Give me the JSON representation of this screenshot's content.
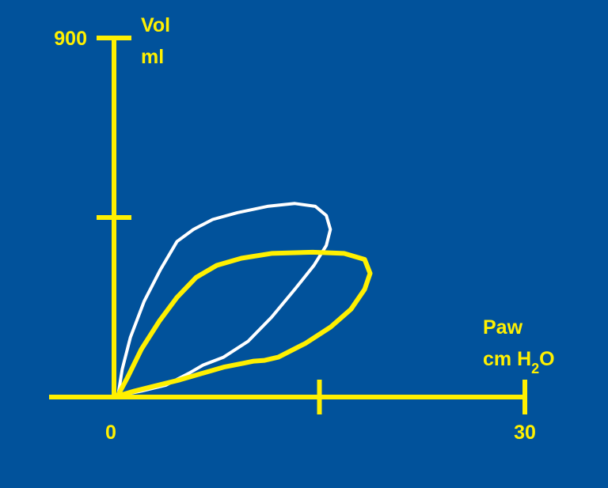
{
  "chart_data": {
    "type": "line",
    "x_axis": {
      "label_line1": "Paw",
      "label_line2_prefix": "cm H",
      "label_line2_sub": "2",
      "label_line2_suffix": "O",
      "range": [
        0,
        30
      ],
      "tick_labels": [
        "0",
        "30"
      ],
      "ticks": [
        0,
        15,
        30
      ]
    },
    "y_axis": {
      "label_line1": "Vol",
      "label_line2": "ml",
      "range": [
        0,
        900
      ],
      "tick_labels": [
        "900"
      ],
      "ticks": [
        450,
        900
      ]
    },
    "series": [
      {
        "color": "#ffffff",
        "closed": true,
        "points": [
          [
            0.3,
            5
          ],
          [
            0.6,
            70
          ],
          [
            1.2,
            150
          ],
          [
            2.2,
            240
          ],
          [
            3.4,
            320
          ],
          [
            4.6,
            390
          ],
          [
            5.8,
            420
          ],
          [
            7.2,
            445
          ],
          [
            9.0,
            462
          ],
          [
            11.2,
            478
          ],
          [
            13.2,
            485
          ],
          [
            14.7,
            478
          ],
          [
            15.5,
            455
          ],
          [
            15.8,
            420
          ],
          [
            15.5,
            380
          ],
          [
            14.6,
            330
          ],
          [
            13.2,
            270
          ],
          [
            11.5,
            200
          ],
          [
            9.8,
            140
          ],
          [
            8.0,
            100
          ],
          [
            6.5,
            80
          ],
          [
            5.5,
            60
          ],
          [
            3.8,
            30
          ],
          [
            2.0,
            15
          ],
          [
            0.5,
            5
          ]
        ]
      },
      {
        "color": "#fff000",
        "closed": true,
        "points": [
          [
            0.3,
            5
          ],
          [
            1.0,
            50
          ],
          [
            2.0,
            120
          ],
          [
            3.3,
            190
          ],
          [
            4.6,
            250
          ],
          [
            6.0,
            300
          ],
          [
            7.5,
            330
          ],
          [
            9.3,
            348
          ],
          [
            11.5,
            360
          ],
          [
            14.5,
            363
          ],
          [
            16.8,
            360
          ],
          [
            18.3,
            345
          ],
          [
            18.7,
            310
          ],
          [
            18.3,
            270
          ],
          [
            17.3,
            220
          ],
          [
            15.8,
            175
          ],
          [
            14.0,
            135
          ],
          [
            12.0,
            100
          ],
          [
            11.0,
            92
          ],
          [
            10.2,
            90
          ],
          [
            9.5,
            85
          ],
          [
            8.0,
            75
          ],
          [
            6.5,
            60
          ],
          [
            4.8,
            43
          ],
          [
            3.0,
            28
          ],
          [
            1.5,
            15
          ],
          [
            0.5,
            5
          ]
        ]
      }
    ],
    "axis_color": "#fff000",
    "background": "#01529b",
    "grid": false
  }
}
